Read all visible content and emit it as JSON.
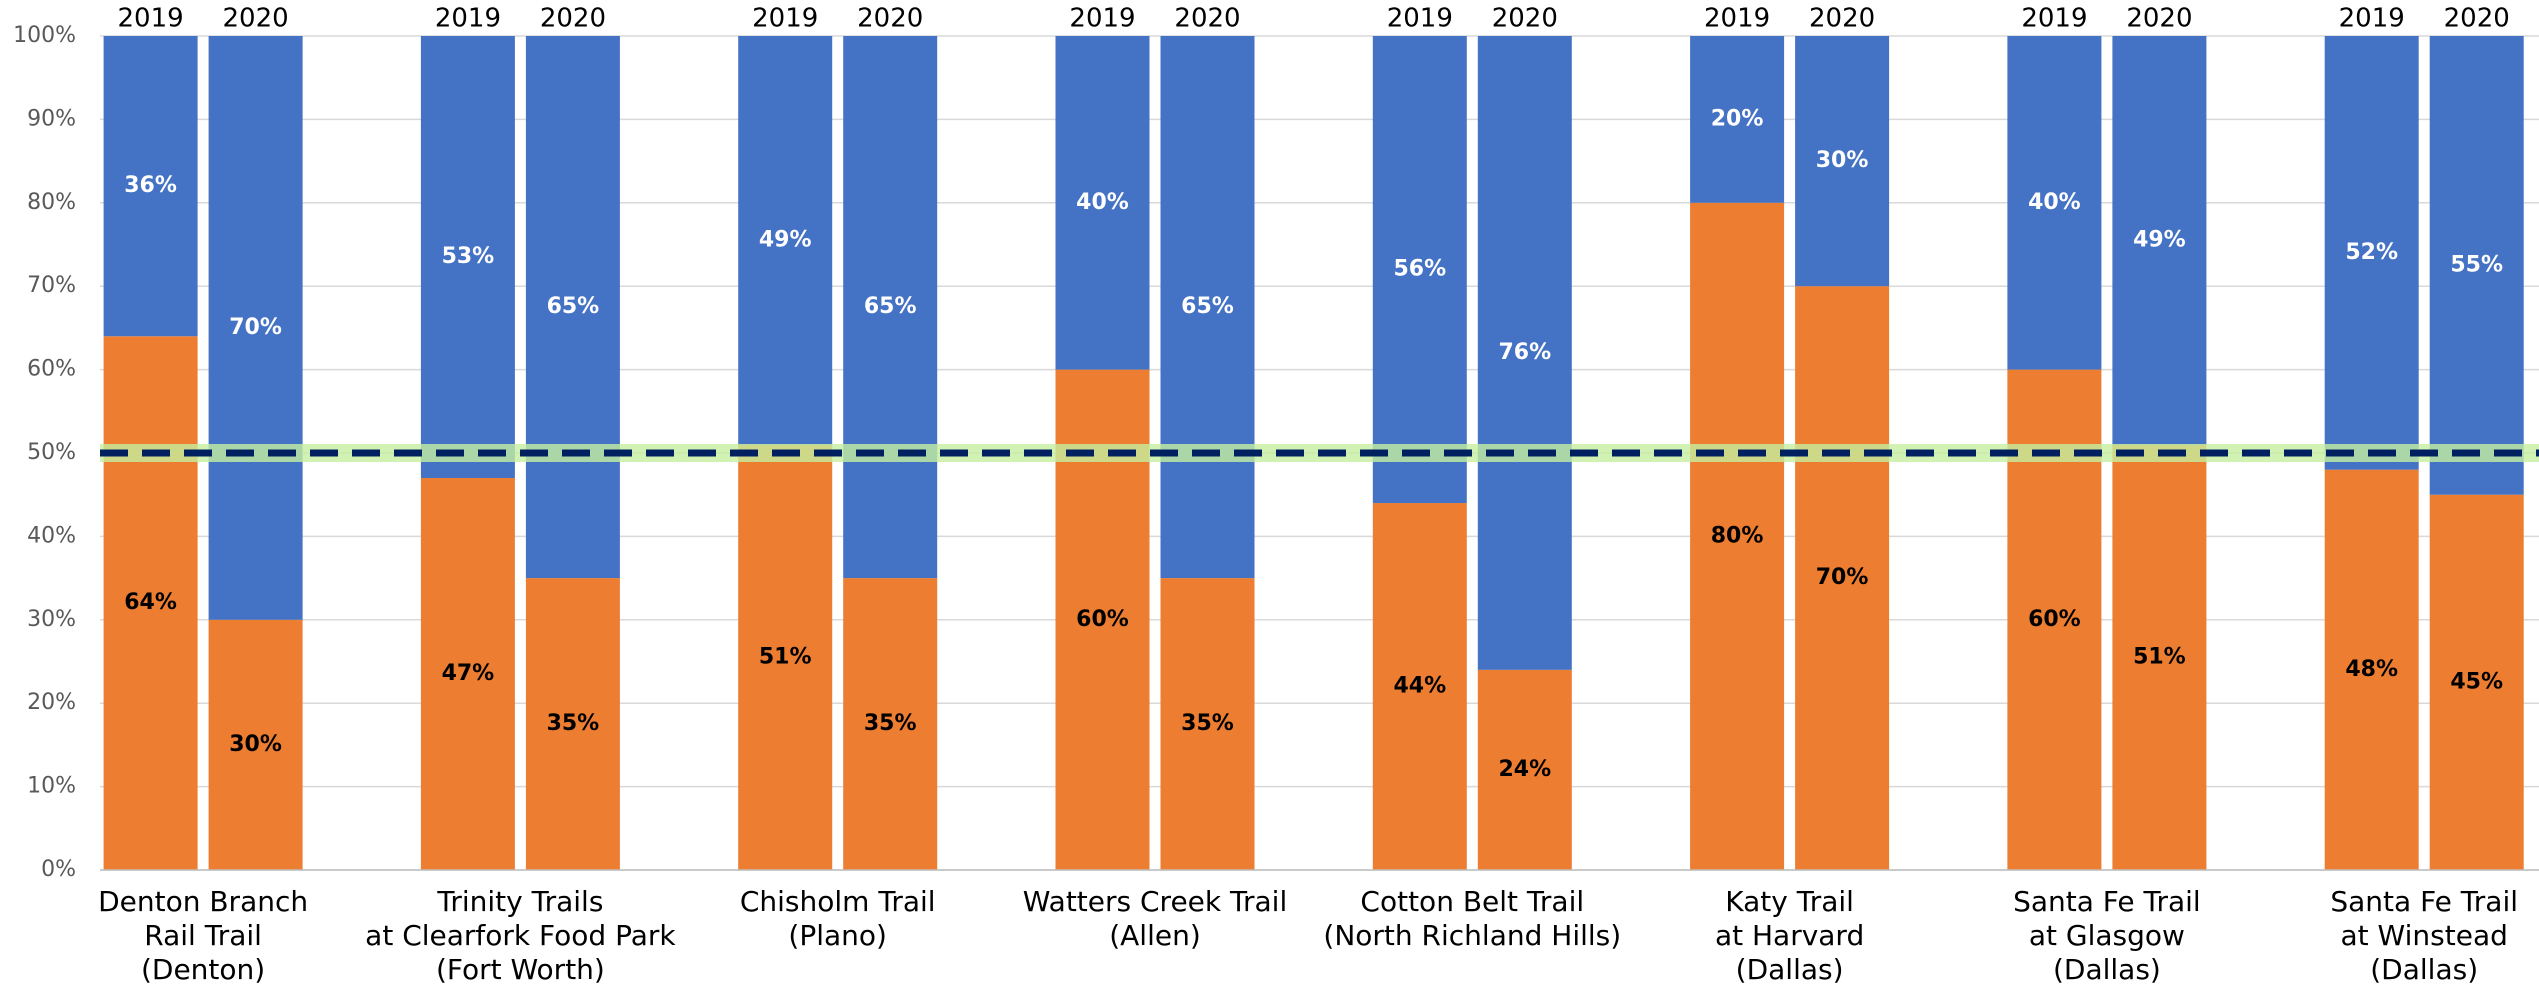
{
  "chart_data": {
    "type": "stacked_bar",
    "ylim": [
      0,
      100
    ],
    "yticks": [
      {
        "value": 0,
        "label": "0%"
      },
      {
        "value": 10,
        "label": "10%"
      },
      {
        "value": 20,
        "label": "20%"
      },
      {
        "value": 30,
        "label": "30%"
      },
      {
        "value": 40,
        "label": "40%"
      },
      {
        "value": 50,
        "label": "50%"
      },
      {
        "value": 60,
        "label": "60%"
      },
      {
        "value": 70,
        "label": "70%"
      },
      {
        "value": 80,
        "label": "80%"
      },
      {
        "value": 90,
        "label": "90%"
      },
      {
        "value": 100,
        "label": "100%"
      }
    ],
    "grid": true,
    "categories": [
      "2019",
      "2020",
      "2019",
      "2020",
      "2019",
      "2020",
      "2019",
      "2020",
      "2019",
      "2020",
      "2019",
      "2020",
      "2019",
      "2020",
      "2019",
      "2020"
    ],
    "groups": [
      [
        "Denton Branch",
        "Rail Trail",
        "(Denton)"
      ],
      [
        "Trinity Trails",
        "at Clearfork Food Park",
        "(Fort Worth)"
      ],
      [
        "Chisholm Trail",
        "(Plano)"
      ],
      [
        "Watters Creek Trail",
        "(Allen)"
      ],
      [
        "Cotton Belt Trail",
        "(North Richland Hills)"
      ],
      [
        "Katy Trail",
        "at Harvard",
        "(Dallas)"
      ],
      [
        "Santa Fe Trail",
        "at Glasgow",
        "(Dallas)"
      ],
      [
        "Santa Fe Trail",
        "at Winstead",
        "(Dallas)"
      ]
    ],
    "series": [
      {
        "color": "#ed7d31",
        "label_color": "#000000",
        "values": [
          64,
          30,
          47,
          35,
          51,
          35,
          60,
          35,
          44,
          24,
          80,
          70,
          60,
          51,
          48,
          45
        ],
        "value_labels": [
          "64%",
          "30%",
          "47%",
          "35%",
          "51%",
          "35%",
          "60%",
          "35%",
          "44%",
          "24%",
          "80%",
          "70%",
          "60%",
          "51%",
          "48%",
          "45%"
        ]
      },
      {
        "color": "#4472c4",
        "label_color": "#ffffff",
        "values": [
          36,
          70,
          53,
          65,
          49,
          65,
          40,
          65,
          56,
          76,
          20,
          30,
          40,
          49,
          52,
          55
        ],
        "value_labels": [
          "36%",
          "70%",
          "53%",
          "65%",
          "49%",
          "65%",
          "40%",
          "65%",
          "56%",
          "76%",
          "20%",
          "30%",
          "40%",
          "49%",
          "52%",
          "55%"
        ]
      }
    ],
    "reference_line": {
      "value": 50,
      "color": "#002060",
      "glow_color": "#c6efa0"
    }
  }
}
